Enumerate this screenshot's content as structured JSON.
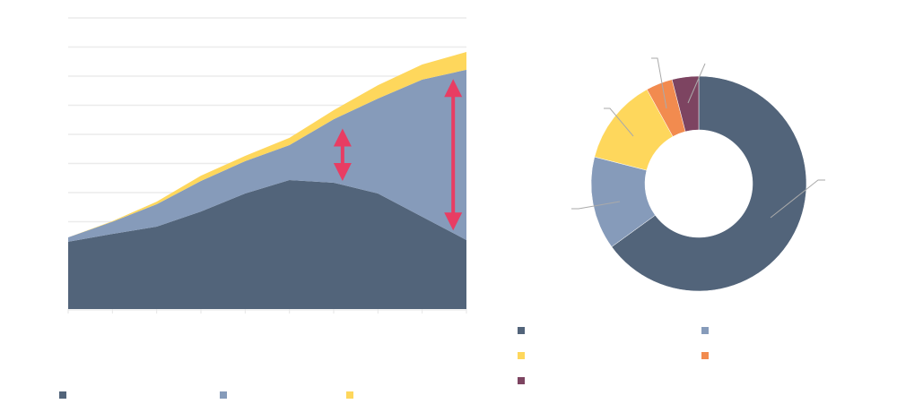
{
  "colors": {
    "series_dark": "#52647a",
    "series_blue": "#869bba",
    "series_yellow": "#fed75c",
    "series_orange": "#f28b4f",
    "series_purple": "#7d4461",
    "arrow": "#e83d63",
    "grid": "#ebebeb",
    "leader": "#aaaaaa"
  },
  "chart_data": [
    {
      "type": "area",
      "stacked": true,
      "grid": true,
      "legend": "bottom",
      "ylim": [
        0,
        10
      ],
      "x_ticks": 10,
      "series": [
        {
          "color_key": "series_dark",
          "values": [
            2.31,
            2.58,
            2.83,
            3.35,
            3.97,
            4.43,
            4.34,
            3.97,
            3.17,
            2.37
          ]
        },
        {
          "color_key": "series_blue",
          "values": [
            0.15,
            0.42,
            0.77,
            1.05,
            1.11,
            1.2,
            2.18,
            3.26,
            4.71,
            5.85
          ]
        },
        {
          "color_key": "series_yellow",
          "values": [
            0,
            0.02,
            0.09,
            0.18,
            0.18,
            0.25,
            0.31,
            0.46,
            0.52,
            0.61
          ]
        }
      ],
      "annotations": [
        {
          "type": "double-arrow",
          "x_index": 6.2,
          "from": 4.4,
          "to": 6.2
        },
        {
          "type": "double-arrow",
          "x_index": 8.7,
          "from": 2.7,
          "to": 7.9
        }
      ]
    },
    {
      "type": "pie",
      "donut": true,
      "legend": "bottom",
      "slices": [
        {
          "color_key": "series_dark",
          "value": 65
        },
        {
          "color_key": "series_blue",
          "value": 14
        },
        {
          "color_key": "series_yellow",
          "value": 13
        },
        {
          "color_key": "series_orange",
          "value": 4
        },
        {
          "color_key": "series_purple",
          "value": 4
        }
      ]
    }
  ]
}
